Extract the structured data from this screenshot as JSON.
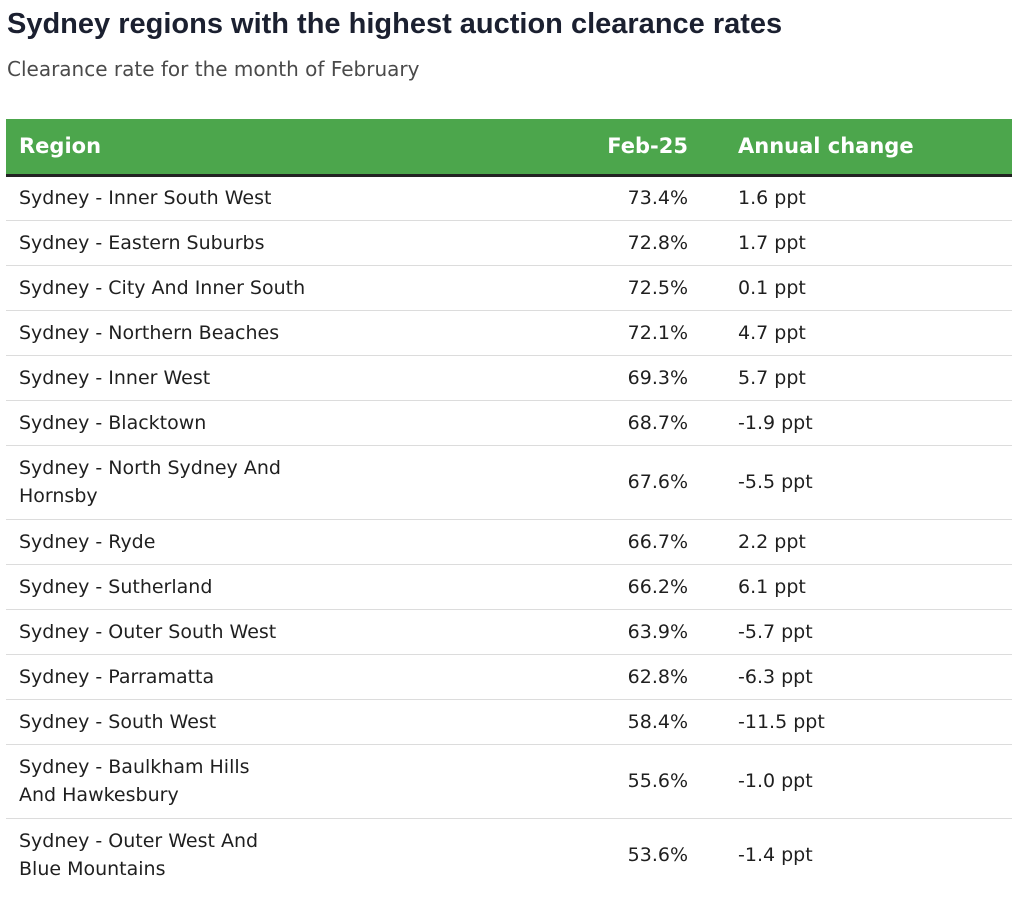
{
  "chart_data": {
    "type": "table",
    "title": "Sydney regions with the highest auction clearance rates",
    "subtitle": "Clearance rate for the month of February",
    "header_color": "#4ca64c",
    "columns": [
      "Region",
      "Feb-25",
      "Annual change"
    ],
    "rows": [
      {
        "region": "Sydney - Inner South West",
        "rate": "73.4%",
        "change": "1.6 ppt"
      },
      {
        "region": "Sydney - Eastern Suburbs",
        "rate": "72.8%",
        "change": "1.7 ppt"
      },
      {
        "region": "Sydney - City And Inner South",
        "rate": "72.5%",
        "change": "0.1 ppt"
      },
      {
        "region": "Sydney - Northern Beaches",
        "rate": "72.1%",
        "change": "4.7 ppt"
      },
      {
        "region": "Sydney - Inner West",
        "rate": "69.3%",
        "change": "5.7 ppt"
      },
      {
        "region": "Sydney - Blacktown",
        "rate": "68.7%",
        "change": "-1.9 ppt"
      },
      {
        "region": "Sydney - North Sydney And Hornsby",
        "rate": "67.6%",
        "change": "-5.5 ppt"
      },
      {
        "region": "Sydney - Ryde",
        "rate": "66.7%",
        "change": "2.2 ppt"
      },
      {
        "region": "Sydney - Sutherland",
        "rate": "66.2%",
        "change": "6.1 ppt"
      },
      {
        "region": "Sydney - Outer South West",
        "rate": "63.9%",
        "change": "-5.7 ppt"
      },
      {
        "region": "Sydney - Parramatta",
        "rate": "62.8%",
        "change": "-6.3 ppt"
      },
      {
        "region": "Sydney - South West",
        "rate": "58.4%",
        "change": "-11.5 ppt"
      },
      {
        "region": "Sydney - Baulkham Hills And Hawkesbury",
        "rate": "55.6%",
        "change": "-1.0 ppt"
      },
      {
        "region": "Sydney - Outer West And Blue Mountains",
        "rate": "53.6%",
        "change": "-1.4 ppt"
      }
    ]
  }
}
